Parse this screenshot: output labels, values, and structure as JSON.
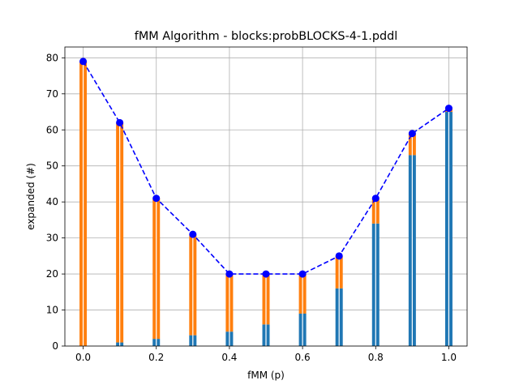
{
  "chart_data": {
    "type": "bar",
    "title": "fMM Algorithm - blocks:probBLOCKS-4-1.pddl",
    "xlabel": "fMM (p)",
    "ylabel": "expanded (#)",
    "xlim": [
      -0.05,
      1.05
    ],
    "ylim": [
      0,
      83
    ],
    "grid": true,
    "x": [
      0.0,
      0.1,
      0.2,
      0.3,
      0.4,
      0.5,
      0.6,
      0.7,
      0.8,
      0.9,
      1.0
    ],
    "xticks": [
      0.0,
      0.2,
      0.4,
      0.6,
      0.8,
      1.0
    ],
    "xtick_labels": [
      "0.0",
      "0.2",
      "0.4",
      "0.6",
      "0.8",
      "1.0"
    ],
    "yticks": [
      0,
      10,
      20,
      30,
      40,
      50,
      60,
      70,
      80
    ],
    "ytick_labels": [
      "0",
      "10",
      "20",
      "30",
      "40",
      "50",
      "60",
      "70",
      "80"
    ],
    "series": [
      {
        "kind": "bar",
        "color": "#1f77b4",
        "values": [
          0,
          1,
          2,
          3,
          4,
          6,
          9,
          16,
          34,
          53,
          65
        ]
      },
      {
        "kind": "bar-stacked",
        "color": "#ff7f0e",
        "values": [
          79,
          61,
          39,
          28,
          16,
          14,
          11,
          9,
          7,
          6,
          1
        ]
      },
      {
        "kind": "line",
        "color": "#0000ff",
        "style": "dashed",
        "marker": "circle",
        "values": [
          79,
          62,
          41,
          31,
          20,
          20,
          20,
          25,
          41,
          59,
          66
        ]
      }
    ]
  }
}
